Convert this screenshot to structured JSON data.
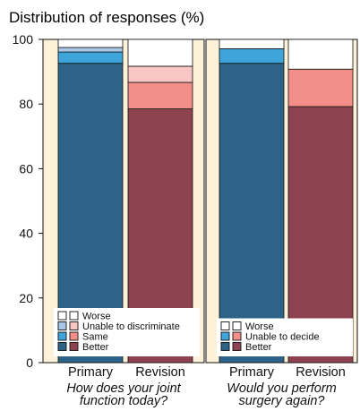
{
  "chart_data": {
    "type": "bar",
    "stacked": true,
    "title": "Distribution of responses (%)",
    "ylim": [
      0,
      100
    ],
    "yticks": [
      0,
      20,
      40,
      60,
      80,
      100
    ],
    "categories": [
      "Primary",
      "Revision"
    ],
    "panels": [
      {
        "question_lines": [
          "How does your joint",
          "function today?"
        ],
        "legend_position": "bottom-left",
        "series": [
          {
            "name": "Better",
            "values": [
              92.6,
              78.5
            ],
            "colors": [
              "#2c6386",
              "#8d4450"
            ]
          },
          {
            "name": "Same",
            "values": [
              3.5,
              8.2
            ],
            "colors": [
              "#3ea4d9",
              "#f48e88"
            ]
          },
          {
            "name": "Unable to discriminate",
            "values": [
              1.4,
              5.0
            ],
            "colors": [
              "#a9c7e6",
              "#f8c6c4"
            ]
          },
          {
            "name": "Worse",
            "values": [
              2.5,
              8.3
            ],
            "colors": [
              "#ffffff",
              "#ffffff"
            ]
          }
        ]
      },
      {
        "question_lines": [
          "Would you perform",
          "surgery again?"
        ],
        "legend_position": "bottom-left",
        "series": [
          {
            "name": "Better",
            "values": [
              92.6,
              79.2
            ],
            "colors": [
              "#2c6386",
              "#8d4450"
            ]
          },
          {
            "name": "Unable to decide",
            "values": [
              4.5,
              11.6
            ],
            "colors": [
              "#3ea4d9",
              "#f48e88"
            ]
          },
          {
            "name": "Worse",
            "values": [
              2.9,
              9.2
            ],
            "colors": [
              "#ffffff",
              "#ffffff"
            ]
          }
        ]
      }
    ],
    "colors": {
      "background": "#fdf1d9",
      "axis": "#111111"
    }
  }
}
